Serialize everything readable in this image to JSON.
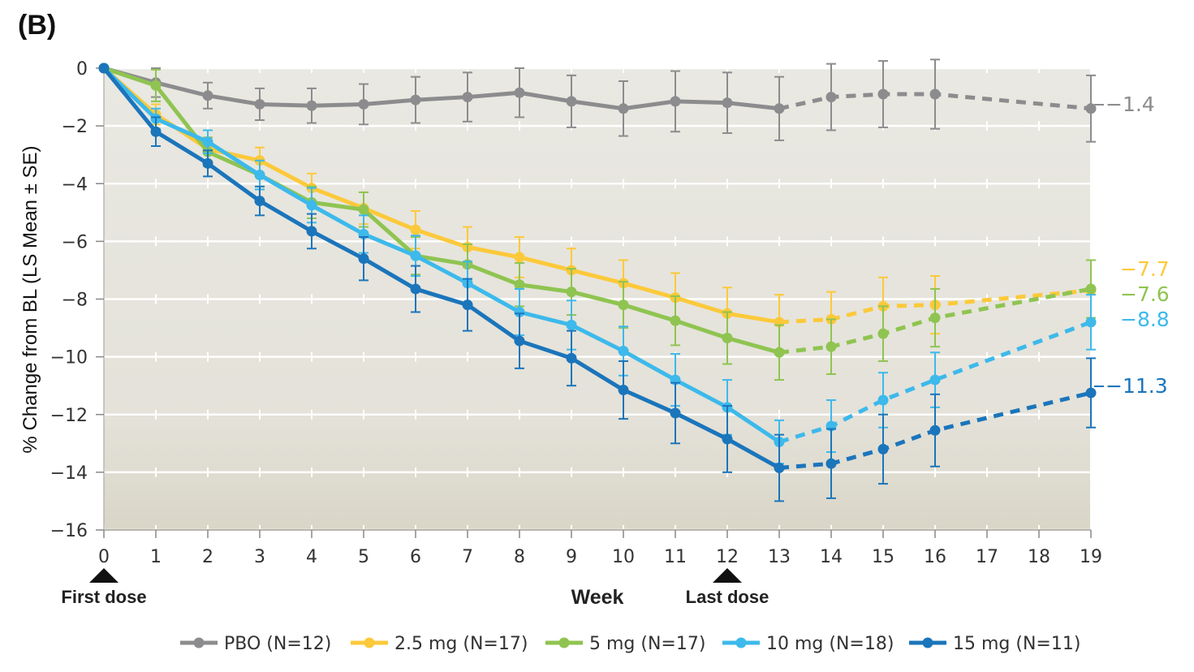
{
  "panel_label": "(B)",
  "chart_data": {
    "type": "line",
    "title": "",
    "xlabel": "Week",
    "ylabel": "% Change from BL (LS Mean ± SE)",
    "xlim": [
      0,
      19
    ],
    "ylim": [
      -16,
      0
    ],
    "x_ticks": [
      0,
      1,
      2,
      3,
      4,
      5,
      6,
      7,
      8,
      9,
      10,
      11,
      12,
      13,
      14,
      15,
      16,
      17,
      18,
      19
    ],
    "y_ticks": [
      0,
      -2,
      -4,
      -6,
      -8,
      -10,
      -12,
      -14,
      -16
    ],
    "y_tick_labels": [
      "0",
      "−2",
      "−4",
      "−6",
      "−8",
      "−10",
      "−12",
      "−14",
      "−16"
    ],
    "grid": true,
    "dashed_after_week": 13,
    "markers": [
      {
        "week": 0,
        "label": "First dose"
      },
      {
        "week": 12,
        "label": "Last dose"
      }
    ],
    "legend_position": "bottom",
    "series": [
      {
        "name": "PBO (N=12)",
        "color": "#8c8c8e",
        "end_label": "−1.4",
        "x": [
          0,
          1,
          2,
          3,
          4,
          5,
          6,
          7,
          8,
          9,
          10,
          11,
          12,
          13,
          14,
          15,
          16,
          19
        ],
        "y": [
          0,
          -0.5,
          -0.95,
          -1.25,
          -1.3,
          -1.25,
          -1.1,
          -1.0,
          -0.85,
          -1.15,
          -1.4,
          -1.15,
          -1.2,
          -1.4,
          -1.0,
          -0.9,
          -0.9,
          -1.4
        ],
        "se": [
          0,
          0.5,
          0.45,
          0.55,
          0.6,
          0.7,
          0.8,
          0.85,
          0.85,
          0.9,
          0.95,
          1.05,
          1.05,
          1.1,
          1.15,
          1.15,
          1.2,
          1.15
        ]
      },
      {
        "name": "2.5 mg (N=17)",
        "color": "#fcc93a",
        "end_label": "−7.7",
        "x": [
          0,
          1,
          2,
          3,
          4,
          5,
          6,
          7,
          8,
          9,
          10,
          11,
          12,
          13,
          14,
          15,
          16,
          19
        ],
        "y": [
          0,
          -1.6,
          -2.8,
          -3.2,
          -4.15,
          -4.85,
          -5.6,
          -6.2,
          -6.55,
          -7.0,
          -7.45,
          -7.95,
          -8.5,
          -8.8,
          -8.7,
          -8.25,
          -8.2,
          -7.7
        ],
        "se": [
          0,
          0.35,
          0.4,
          0.45,
          0.5,
          0.55,
          0.65,
          0.7,
          0.7,
          0.75,
          0.8,
          0.85,
          0.9,
          0.95,
          0.95,
          1.0,
          1.0,
          1.05
        ]
      },
      {
        "name": "5 mg (N=17)",
        "color": "#8fc451",
        "end_label": "−7.6",
        "x": [
          0,
          1,
          2,
          3,
          4,
          5,
          6,
          7,
          8,
          9,
          10,
          11,
          12,
          13,
          14,
          15,
          16,
          19
        ],
        "y": [
          0,
          -0.6,
          -2.9,
          -3.7,
          -4.65,
          -4.9,
          -6.5,
          -6.8,
          -7.5,
          -7.75,
          -8.2,
          -8.75,
          -9.35,
          -9.85,
          -9.65,
          -9.2,
          -8.65,
          -7.65
        ],
        "se": [
          0,
          0.55,
          0.5,
          0.5,
          0.55,
          0.6,
          0.65,
          0.7,
          0.75,
          0.8,
          0.8,
          0.85,
          0.9,
          0.95,
          0.95,
          0.95,
          1.0,
          1.0
        ]
      },
      {
        "name": "10 mg (N=18)",
        "color": "#3db9eb",
        "end_label": "−8.8",
        "x": [
          0,
          1,
          2,
          3,
          4,
          5,
          6,
          7,
          8,
          9,
          10,
          11,
          12,
          13,
          14,
          15,
          16,
          19
        ],
        "y": [
          0,
          -1.75,
          -2.55,
          -3.7,
          -4.75,
          -5.75,
          -6.5,
          -7.45,
          -8.45,
          -8.9,
          -9.8,
          -10.8,
          -11.75,
          -12.95,
          -12.4,
          -11.5,
          -10.8,
          -8.8
        ],
        "se": [
          0,
          0.35,
          0.4,
          0.5,
          0.6,
          0.65,
          0.7,
          0.75,
          0.8,
          0.85,
          0.85,
          0.9,
          0.95,
          0.75,
          0.9,
          0.95,
          0.95,
          0.95
        ]
      },
      {
        "name": "15 mg (N=11)",
        "color": "#1b75bb",
        "end_label": "−11.3",
        "x": [
          0,
          1,
          2,
          3,
          4,
          5,
          6,
          7,
          8,
          9,
          10,
          11,
          12,
          13,
          14,
          15,
          16,
          19
        ],
        "y": [
          0,
          -2.2,
          -3.3,
          -4.6,
          -5.65,
          -6.6,
          -7.65,
          -8.2,
          -9.45,
          -10.05,
          -11.15,
          -11.95,
          -12.85,
          -13.85,
          -13.7,
          -13.2,
          -12.55,
          -11.25
        ],
        "se": [
          0,
          0.5,
          0.45,
          0.5,
          0.6,
          0.75,
          0.8,
          0.9,
          0.95,
          0.95,
          1.0,
          1.05,
          1.15,
          1.15,
          1.2,
          1.2,
          1.25,
          1.2
        ]
      }
    ]
  }
}
